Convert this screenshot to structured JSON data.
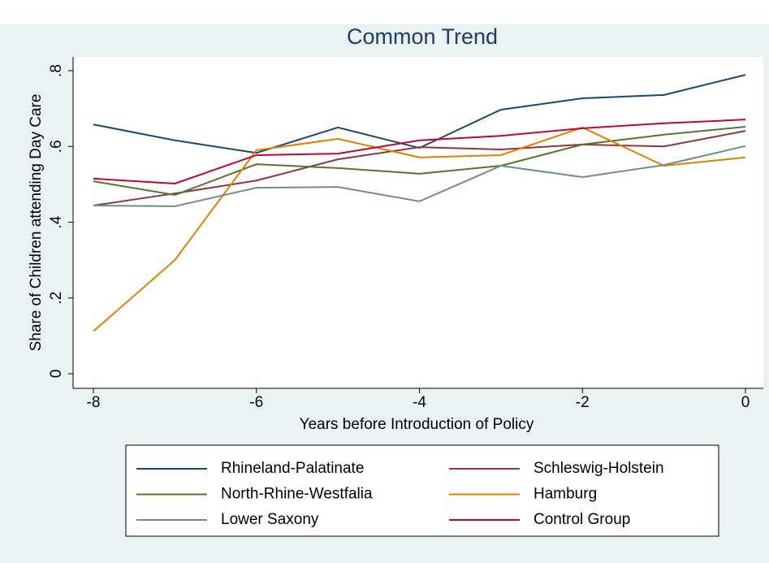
{
  "chart_data": {
    "type": "line",
    "title": "Common Trend",
    "x_label": "Years before Introduction of Policy",
    "y_label": "Share of Children attending Day Care",
    "x": [
      -8,
      -7,
      -6,
      -5,
      -4,
      -3,
      -2,
      -1,
      0
    ],
    "xlim": [
      -8,
      0
    ],
    "xticks": [
      -8,
      -6,
      -4,
      -2,
      0
    ],
    "ylim": [
      0,
      0.8
    ],
    "yticks": [
      0,
      {
        "value": 0.2,
        "label": ".2"
      },
      {
        "value": 0.4,
        "label": ".4"
      },
      {
        "value": 0.6,
        "label": ".6"
      },
      {
        "value": 0.8,
        "label": ".8"
      }
    ],
    "series": [
      {
        "name": "Rhineland-Palatinate",
        "color": "#1a476f",
        "values": [
          0.658,
          0.616,
          0.583,
          0.65,
          0.596,
          0.697,
          0.727,
          0.736,
          0.789
        ]
      },
      {
        "name": "Schleswig-Holstein",
        "color": "#90353b",
        "values": [
          0.444,
          0.476,
          0.51,
          0.566,
          0.598,
          0.592,
          0.605,
          0.6,
          0.641
        ]
      },
      {
        "name": "North-Rhine-Westfalia",
        "color": "#55752f",
        "values": [
          0.508,
          0.472,
          0.553,
          0.543,
          0.528,
          0.549,
          0.605,
          0.631,
          0.652
        ]
      },
      {
        "name": "Hamburg",
        "color": "#e37e00",
        "values": [
          0.112,
          0.3,
          0.59,
          0.62,
          0.571,
          0.577,
          0.65,
          0.549,
          0.571
        ]
      },
      {
        "name": "Lower Saxony",
        "color": "#6e8e84",
        "values": [
          0.444,
          0.442,
          0.491,
          0.493,
          0.455,
          0.549,
          0.519,
          0.551,
          0.601
        ]
      },
      {
        "name": "Control Group",
        "color": "#c10534",
        "values": [
          0.515,
          0.502,
          0.577,
          0.581,
          0.616,
          0.628,
          0.648,
          0.661,
          0.671
        ]
      }
    ]
  }
}
